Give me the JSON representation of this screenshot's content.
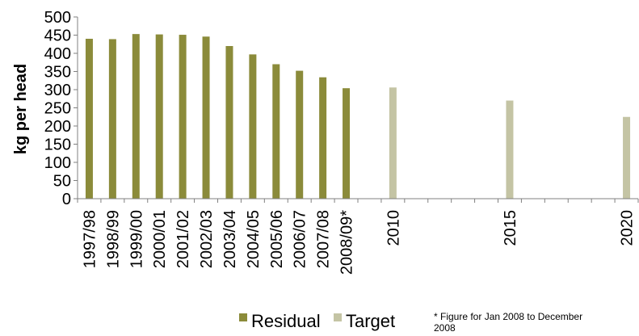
{
  "chart_data": {
    "type": "bar",
    "ylabel": "kg per head",
    "xlabel": "",
    "title": "",
    "ylim": [
      0,
      500
    ],
    "yticks": [
      0,
      50,
      100,
      150,
      200,
      250,
      300,
      350,
      400,
      450,
      500
    ],
    "grid": false,
    "legend_position": "bottom",
    "categories": [
      "1997/98",
      "1998/99",
      "1999/00",
      "2000/01",
      "2001/02",
      "2002/03",
      "2003/04",
      "2004/05",
      "2005/06",
      "2006/07",
      "2007/08",
      "2008/09*",
      "2010",
      "2015",
      "2020"
    ],
    "x_positions": [
      1997,
      1998,
      1999,
      2000,
      2001,
      2002,
      2003,
      2004,
      2005,
      2006,
      2007,
      2008,
      2010,
      2015,
      2020
    ],
    "x_range": [
      1996.5,
      2020.5
    ],
    "series": [
      {
        "name": "Residual",
        "color": "#8B8B3A",
        "values": [
          440,
          439,
          453,
          452,
          451,
          446,
          420,
          397,
          370,
          352,
          334,
          304,
          null,
          null,
          null
        ]
      },
      {
        "name": "Target",
        "color": "#C4C4A4",
        "values": [
          null,
          null,
          null,
          null,
          null,
          null,
          null,
          null,
          null,
          null,
          null,
          null,
          306,
          270,
          225
        ]
      }
    ],
    "footnote": "* Figure for Jan 2008 to December 2008"
  }
}
